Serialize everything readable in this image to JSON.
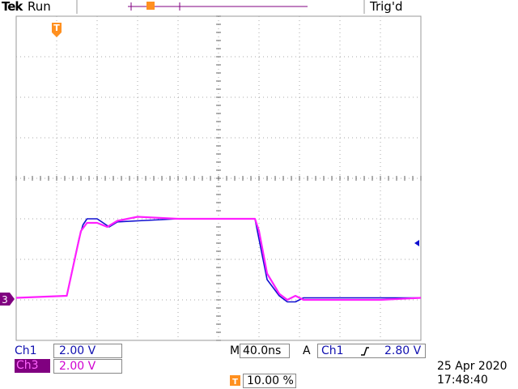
{
  "header": {
    "brand": "Tek",
    "state": "Run",
    "trigger_status": "Trig'd"
  },
  "channels": {
    "ch1": {
      "label": "Ch1",
      "scale": "2.00 V",
      "color": "#1010d0"
    },
    "ch3": {
      "label": "Ch3",
      "scale": "2.00 V",
      "color": "#ff20ff"
    }
  },
  "markers": {
    "trigger_marker": "T",
    "ch3_ground": "3"
  },
  "footer": {
    "timebase_prefix": "M",
    "timebase": "40.0ns",
    "trigger_prefix": "A",
    "trigger_source": "Ch1",
    "trigger_slope_icon": "rising-edge",
    "trigger_level": "2.80 V",
    "trigger_position_icon": "T",
    "trigger_position": "10.00 %",
    "date": "25 Apr  2020",
    "time": "17:48:40"
  },
  "chart_data": {
    "type": "line",
    "grid": "10 x 8 divisions",
    "series": [
      {
        "name": "Ch1",
        "x": [
          0,
          1.25,
          1.55,
          1.65,
          1.75,
          2.0,
          2.3,
          2.5,
          3.0,
          4.0,
          5.0,
          5.9,
          6.0,
          6.2,
          6.5,
          6.7,
          6.9,
          7.1,
          7.3,
          7.5,
          8.0,
          9.0,
          10.0
        ],
        "y": [
          -5.9,
          -5.8,
          -3.0,
          -2.3,
          -2.0,
          -2.0,
          -2.4,
          -2.15,
          -2.1,
          -2.0,
          -2.0,
          -2.0,
          -3.0,
          -5.0,
          -5.8,
          -6.1,
          -6.1,
          -5.9,
          -5.9,
          -5.9,
          -5.9,
          -5.9,
          -5.9
        ]
      },
      {
        "name": "Ch3",
        "x": [
          0,
          1.25,
          1.5,
          1.6,
          1.75,
          2.0,
          2.25,
          2.5,
          3.0,
          4.0,
          5.0,
          5.9,
          6.0,
          6.2,
          6.5,
          6.7,
          6.9,
          7.1,
          7.3,
          7.5,
          8.0,
          9.0,
          10.0
        ],
        "y": [
          -5.9,
          -5.8,
          -3.5,
          -2.6,
          -2.2,
          -2.2,
          -2.4,
          -2.1,
          -1.9,
          -2.0,
          -2.0,
          -2.0,
          -2.6,
          -4.7,
          -5.7,
          -6.0,
          -5.8,
          -6.0,
          -6.0,
          -6.0,
          -6.0,
          -6.0,
          -5.9
        ]
      }
    ]
  }
}
